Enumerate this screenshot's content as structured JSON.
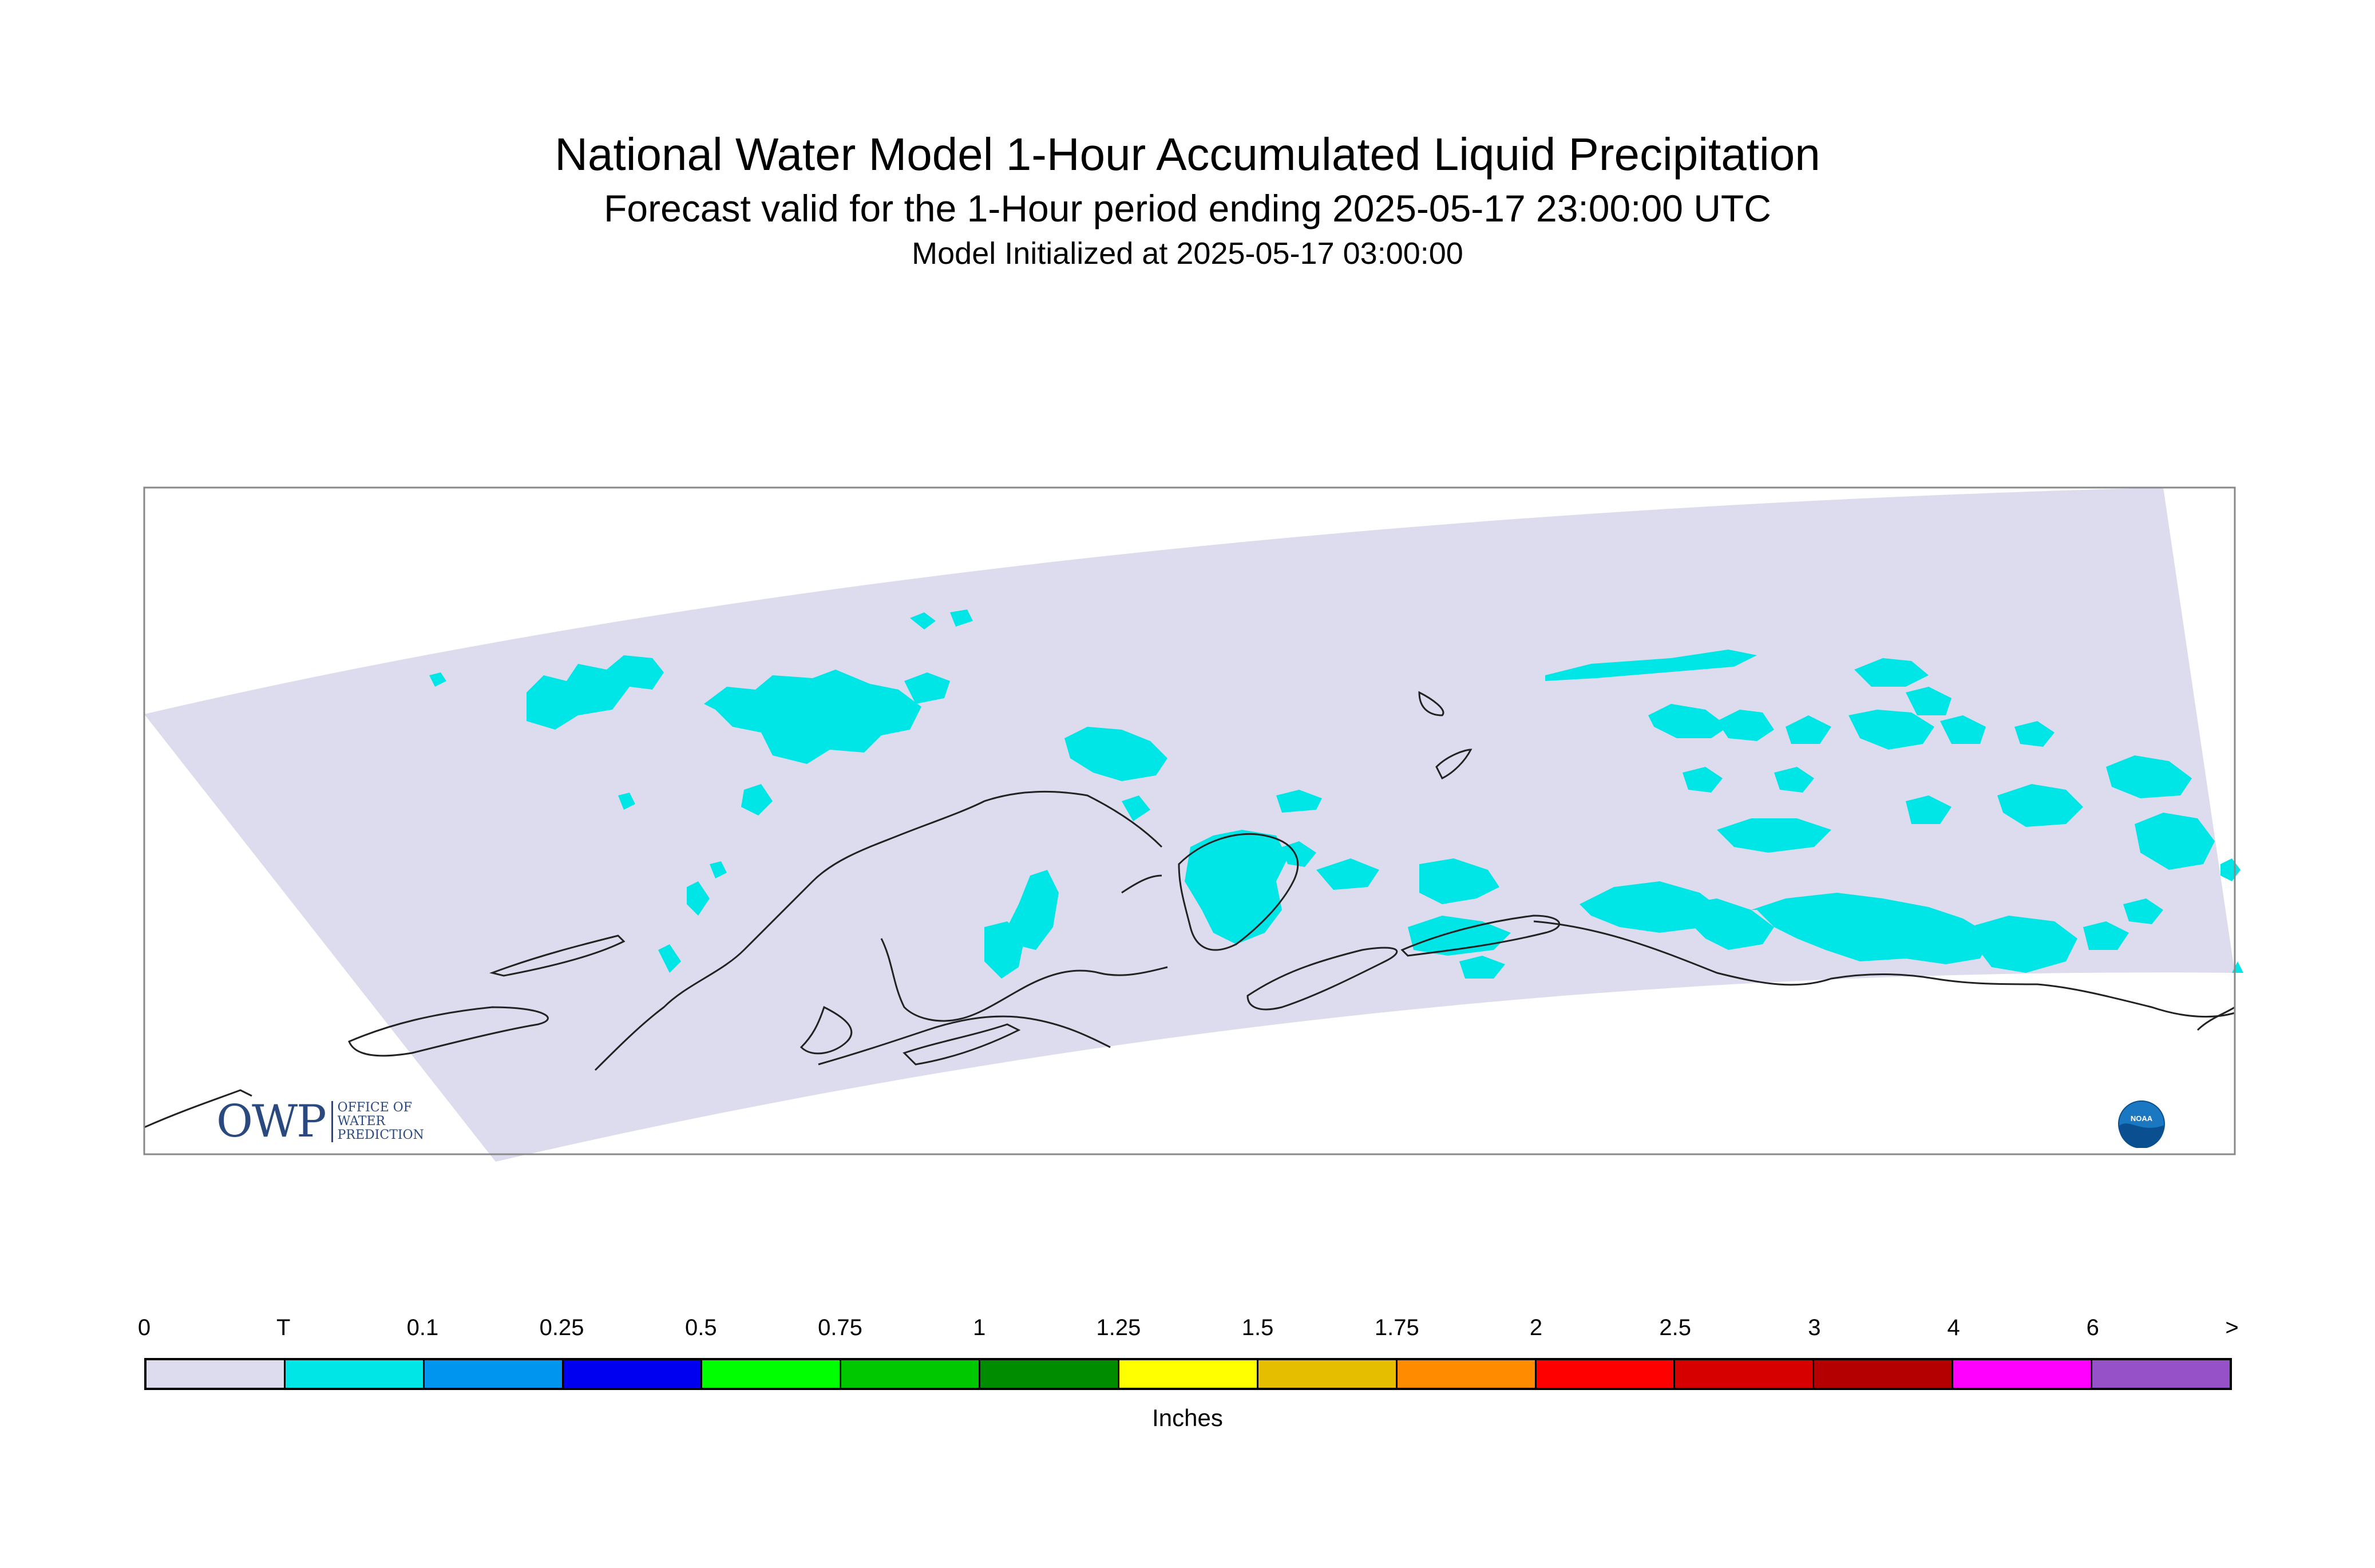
{
  "title": "National Water Model 1-Hour Accumulated Liquid Precipitation",
  "subtitle": "Forecast valid for the 1-Hour period ending 2025-05-17 23:00:00 UTC",
  "init": "Model Initialized at 2025-05-17 03:00:00",
  "legend": {
    "units": "Inches",
    "labels": [
      "0",
      "T",
      "0.1",
      "0.25",
      "0.5",
      "0.75",
      "1",
      "1.25",
      "1.5",
      "1.75",
      "2",
      "2.5",
      "3",
      "4",
      "6",
      ">"
    ],
    "colors": [
      "#dcdcee",
      "#00e5e5",
      "#0096f0",
      "#0000f0",
      "#00ff00",
      "#00c800",
      "#008c00",
      "#ffff00",
      "#e6be00",
      "#ff8c00",
      "#ff0000",
      "#d70000",
      "#b40000",
      "#ff00ff",
      "#9650c8"
    ]
  },
  "logos": {
    "owp": "OWP",
    "owp_sub": [
      "OFFICE OF",
      "WATER",
      "PREDICTION"
    ],
    "noaa": "NOAA"
  },
  "colors": {
    "domain_fill": "#dcdcee",
    "precip_trace": "#00e5e5",
    "coastline": "#222222",
    "frame": "#888888"
  }
}
